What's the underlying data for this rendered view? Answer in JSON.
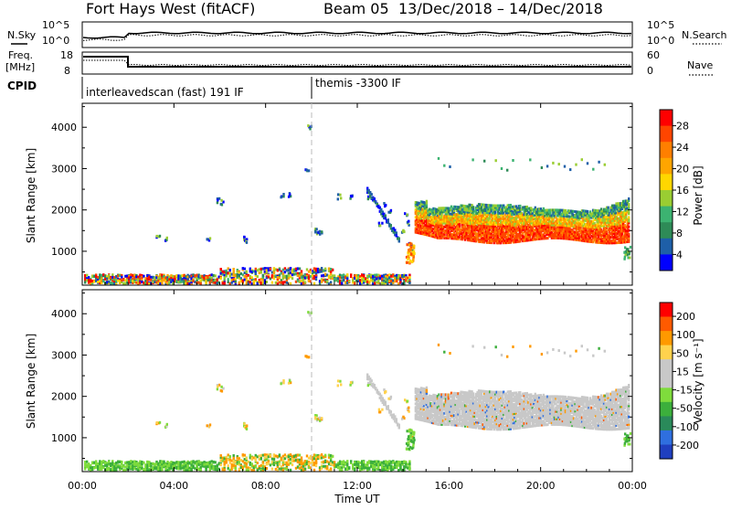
{
  "title": {
    "radar": "Fort Hays West (fitACF)",
    "beam": "Beam 05",
    "dates": "13/Dec/2018 – 14/Dec/2018"
  },
  "colors": {
    "power_scale": [
      "#0000ff",
      "#1e5fa8",
      "#2e8b57",
      "#3cb371",
      "#9acd32",
      "#ffd700",
      "#ffa500",
      "#ff7f00",
      "#ff4500",
      "#ff0000"
    ],
    "velocity_scale": [
      "#1f3fbf",
      "#2f6fdf",
      "#2a8a5a",
      "#3caf3c",
      "#7fdc3c",
      "#c8c8c8",
      "#c8c8c8",
      "#ffd24d",
      "#ff9900",
      "#ff5a00",
      "#ff0000"
    ]
  },
  "top_panels": {
    "noise": {
      "left_label": "N.Sky",
      "left_ticks": [
        "10^5",
        "10^0"
      ],
      "right_label": "N.Search",
      "right_ticks": [
        "10^5",
        "10^0"
      ]
    },
    "freq": {
      "left_label_1": "Freq.",
      "left_label_2": "[MHz]",
      "left_ticks": [
        "18",
        "8"
      ],
      "right_label": "Nave",
      "right_ticks": [
        "60",
        "0"
      ]
    },
    "cpid": {
      "label": "CPID",
      "segments": [
        {
          "label": "interleavedscan (fast) 191 IF",
          "start_h": 0,
          "end_h": 10
        },
        {
          "label": "themis -3300 IF",
          "start_h": 10,
          "end_h": 24
        }
      ]
    }
  },
  "chart_data": [
    {
      "type": "heatmap",
      "panel": "power",
      "ylabel": "Slant Range [km]",
      "yticks": [
        "4000",
        "3000",
        "2000",
        "1000"
      ],
      "ylim_km": [
        180,
        4580
      ],
      "xlim_hours": [
        0,
        24
      ],
      "colorbar": {
        "label": "Power [dB]",
        "ticks": [
          "28",
          "24",
          "20",
          "16",
          "12",
          "8",
          "4"
        ],
        "range": [
          0,
          30
        ]
      },
      "regions": [
        {
          "t0": 0,
          "t1": 14.3,
          "r0": 180,
          "r1": 360,
          "level": "mixed-ground"
        },
        {
          "t0": 14.5,
          "t1": 23.8,
          "r0": 1250,
          "r1": 2350,
          "level": "high"
        },
        {
          "t0": 15.5,
          "t1": 23.5,
          "r0": 2900,
          "r1": 3300,
          "level": "low"
        }
      ]
    },
    {
      "type": "heatmap",
      "panel": "velocity",
      "ylabel": "Slant Range [km]",
      "yticks": [
        "4000",
        "3000",
        "2000",
        "1000"
      ],
      "ylim_km": [
        180,
        4580
      ],
      "xlim_hours": [
        0,
        24
      ],
      "xlabel": "Time UT",
      "xticks": [
        "00:00",
        "04:00",
        "08:00",
        "12:00",
        "16:00",
        "20:00",
        "00:00"
      ],
      "colorbar": {
        "label": "Velocity [m s⁻¹]",
        "ticks": [
          "200",
          "100",
          "50",
          "15",
          "-15",
          "-50",
          "-100",
          "-200"
        ],
        "range": [
          -250,
          250
        ]
      },
      "regions": [
        {
          "t0": 0,
          "t1": 14.3,
          "r0": 180,
          "r1": 600,
          "level": "ground-low-velocity"
        },
        {
          "t0": 14.5,
          "t1": 23.8,
          "r0": 1250,
          "r1": 2350,
          "level": "near-zero"
        }
      ]
    }
  ]
}
